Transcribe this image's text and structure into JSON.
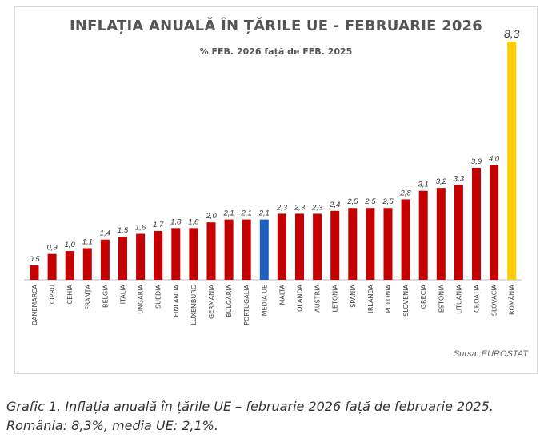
{
  "chart_data": {
    "type": "bar",
    "title": "INFLAȚIA ANUALĂ ÎN ȚĂRILE UE - FEBRUARIE 2026",
    "subtitle": "% FEB. 2026 față de FEB. 2025",
    "categories": [
      "DANEMARCA",
      "CIPRU",
      "CEHIA",
      "FRANȚA",
      "BELGIA",
      "ITALIA",
      "UNGARIA",
      "SUEDIA",
      "FINLANDA",
      "LUXEMBURG",
      "GERMANIA",
      "BULGARIA",
      "PORTUGALIA",
      "MEDIA UE",
      "MALTA",
      "OLANDA",
      "AUSTRIA",
      "LETONIA",
      "SPANIA",
      "IRLANDA",
      "POLONIA",
      "SLOVENIA",
      "GRECIA",
      "ESTONIA",
      "LITUANIA",
      "CROAȚIA",
      "SLOVACIA",
      "ROMÂNIA"
    ],
    "values": [
      0.5,
      0.9,
      1.0,
      1.1,
      1.4,
      1.5,
      1.6,
      1.7,
      1.8,
      1.8,
      2.0,
      2.1,
      2.1,
      2.1,
      2.3,
      2.3,
      2.3,
      2.4,
      2.5,
      2.5,
      2.5,
      2.8,
      3.1,
      3.2,
      3.3,
      3.9,
      4.0,
      8.3
    ],
    "value_labels": [
      "0,5",
      "0,9",
      "1,0",
      "1,1",
      "1,4",
      "1,5",
      "1,6",
      "1,7",
      "1,8",
      "1,8",
      "2,0",
      "2,1",
      "2,1",
      "2,1",
      "2,3",
      "2,3",
      "2,3",
      "2,4",
      "2,5",
      "2,5",
      "2,5",
      "2,8",
      "3,1",
      "3,2",
      "3,3",
      "3,9",
      "4,0",
      "8,3"
    ],
    "colors": {
      "default": "#c40000",
      "highlight_eu": "#1f5fbf",
      "highlight_ro": "#ffcc00"
    },
    "highlight": {
      "MEDIA UE": "highlight_eu",
      "ROMÂNIA": "highlight_ro"
    },
    "ylim": [
      0,
      8.3
    ],
    "grid": false,
    "legend": "none"
  },
  "source": "Sursa: EUROSTAT",
  "caption": "Grafic 1. Inflația anuală în țările UE – februarie 2026 față de februarie 2025. România: 8,3%, media UE: 2,1%."
}
